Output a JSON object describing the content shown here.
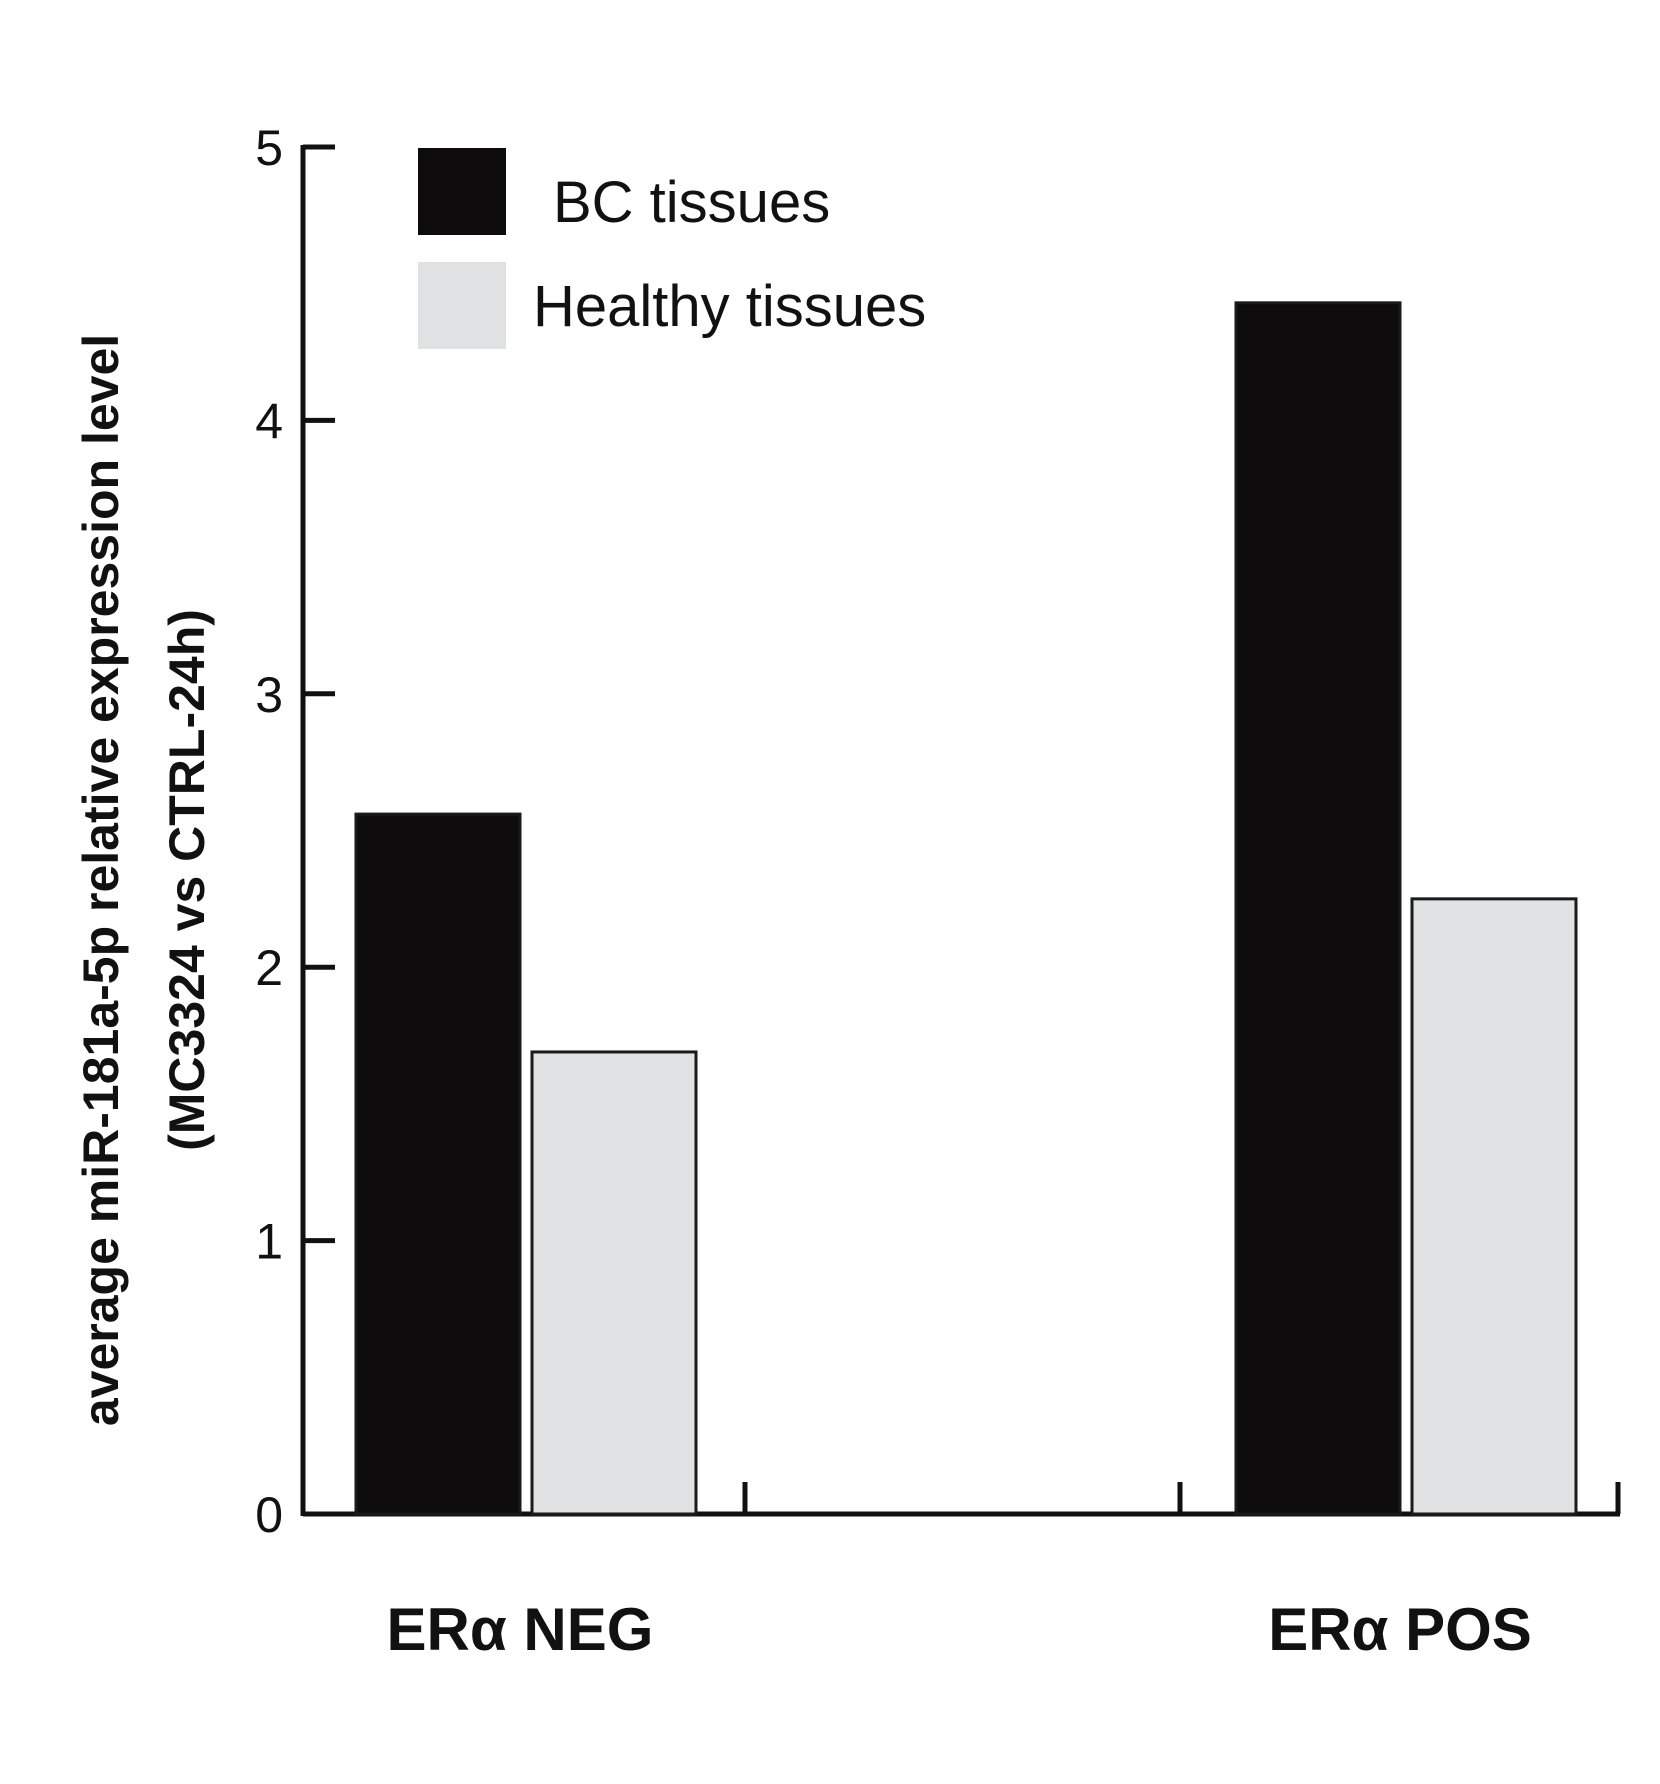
{
  "chart_data": {
    "type": "bar",
    "title": "",
    "xlabel": "",
    "ylabel_lines": [
      "average miR-181a-5p relative expression level",
      "(MC3324 vs CTRL-24h)"
    ],
    "categories": [
      "ERα NEG",
      "ERα POS"
    ],
    "series": [
      {
        "name": "BC tissues",
        "values": [
          2.56,
          4.43
        ],
        "color": "#0d0b0b"
      },
      {
        "name": "Healthy tissues",
        "values": [
          1.69,
          2.25
        ],
        "color": "#dfe1e2"
      }
    ],
    "ylim": [
      0,
      5
    ],
    "yticks": [
      0,
      1,
      2,
      3,
      4,
      5
    ],
    "grid": false,
    "legend_position": "top-left"
  }
}
